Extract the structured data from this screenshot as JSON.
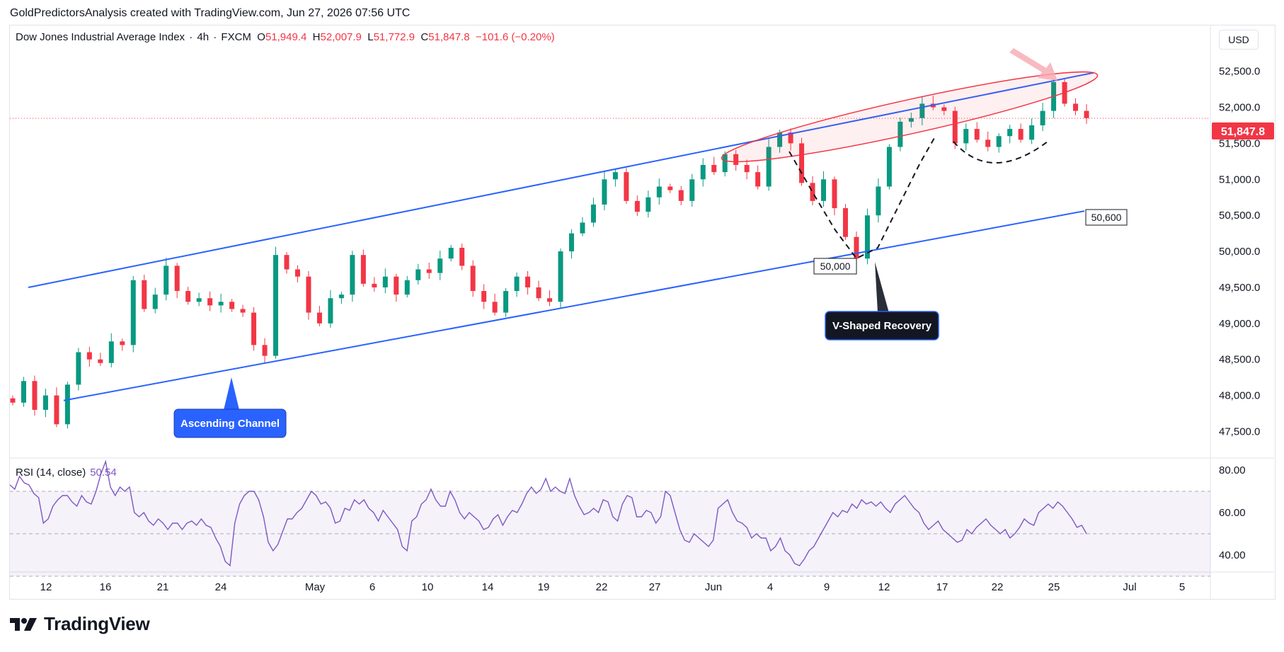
{
  "credit": "GoldPredictorsAnalysis created with TradingView.com, Jun 27, 2026 07:56 UTC",
  "legend": {
    "symbol": "Dow Jones Industrial Average Index",
    "interval": "4h",
    "source": "FXCM",
    "o_label": "O",
    "o": "51,949.4",
    "h_label": "H",
    "h": "52,007.9",
    "l_label": "L",
    "l": "51,772.9",
    "c_label": "C",
    "c": "51,847.8",
    "change": "−101.6 (−0.20%)"
  },
  "currency": "USD",
  "last_price": "51,847.8",
  "rsi": {
    "label": "RSI (14, close)",
    "value": "50.54"
  },
  "annotations": {
    "ascending_channel": "Ascending Channel",
    "v_shaped": "V-Shaped Recovery",
    "level_low": "50,000",
    "level_channel": "50,600"
  },
  "brand": "TradingView",
  "colors": {
    "up": "#089981",
    "down": "#f23645",
    "channel": "#2962ff",
    "rsi": "#7e57c2",
    "ellipse": "#f23645"
  },
  "chart_data": [
    {
      "type": "candlestick",
      "ylim": [
        47200,
        52900
      ],
      "yticks": [
        47500,
        48000,
        48500,
        49000,
        49500,
        50000,
        50500,
        51000,
        51500,
        52000,
        52500
      ],
      "ytick_labels": [
        "47,500.0",
        "48,000.0",
        "48,500.0",
        "49,000.0",
        "49,500.0",
        "50,000.0",
        "50,500.0",
        "51,000.0",
        "51,500.0",
        "52,000.0",
        "52,500.0"
      ],
      "xtick_labels": [
        "12",
        "16",
        "21",
        "24",
        "May",
        "6",
        "10",
        "14",
        "19",
        "22",
        "27",
        "Jun",
        "4",
        "9",
        "12",
        "17",
        "22",
        "25",
        "Jul",
        "5"
      ],
      "series_close": [
        47900,
        48200,
        47800,
        48000,
        47600,
        48150,
        48600,
        48500,
        48450,
        48750,
        48700,
        49600,
        49200,
        49400,
        49800,
        49450,
        49300,
        49350,
        49250,
        49300,
        49200,
        49150,
        48700,
        48550,
        49950,
        49750,
        49650,
        49150,
        49000,
        49350,
        49400,
        49950,
        49550,
        49500,
        49650,
        49400,
        49600,
        49750,
        49700,
        49900,
        50050,
        49800,
        49450,
        49300,
        49150,
        49450,
        49650,
        49500,
        49350,
        49300,
        50000,
        50250,
        50400,
        50650,
        51000,
        51100,
        50700,
        50550,
        50750,
        50900,
        50850,
        50700,
        51000,
        51200,
        51100,
        51350,
        51200,
        51100,
        50900,
        51450,
        51650,
        51500,
        50950,
        50700,
        51000,
        50600,
        50200,
        49900,
        50500,
        50900,
        51450,
        51800,
        51850,
        52050,
        52000,
        51950,
        51500,
        51700,
        51550,
        51450,
        51600,
        51700,
        51550,
        51750,
        51950,
        52350,
        52050,
        51950,
        51850
      ],
      "channel_upper": {
        "start": [
          "Apr 10",
          49500
        ],
        "end": [
          "Jun 25",
          52500
        ]
      },
      "channel_lower": {
        "start": [
          "Apr 12",
          47900
        ],
        "end": [
          "Jun 25",
          50600
        ]
      }
    },
    {
      "type": "line",
      "name": "RSI (14, close)",
      "ylim": [
        33,
        83
      ],
      "yticks": [
        40,
        60,
        80
      ],
      "ytick_labels": [
        "40.00",
        "60.00",
        "80.00"
      ],
      "bands": [
        30,
        50,
        70
      ],
      "values": [
        73,
        71,
        77,
        74,
        73,
        69,
        67,
        55,
        57,
        63,
        66,
        68,
        68,
        65,
        63,
        68,
        65,
        64,
        70,
        78,
        84,
        72,
        68,
        72,
        70,
        72,
        60,
        58,
        60,
        56,
        54,
        57,
        55,
        52,
        55,
        55,
        52,
        55,
        56,
        54,
        57,
        54,
        53,
        48,
        44,
        37,
        35,
        55,
        64,
        68,
        70,
        70,
        66,
        58,
        46,
        42,
        45,
        51,
        57,
        57,
        60,
        62,
        66,
        70,
        68,
        64,
        65,
        62,
        55,
        56,
        62,
        61,
        66,
        64,
        66,
        62,
        60,
        56,
        61,
        58,
        55,
        52,
        44,
        42,
        56,
        58,
        64,
        66,
        71,
        66,
        63,
        63,
        70,
        66,
        60,
        57,
        60,
        58,
        56,
        52,
        53,
        57,
        59,
        54,
        58,
        61,
        60,
        64,
        69,
        72,
        69,
        71,
        76,
        70,
        72,
        70,
        69,
        76,
        68,
        63,
        59,
        60,
        62,
        60,
        66,
        65,
        58,
        56,
        64,
        68,
        67,
        58,
        58,
        61,
        60,
        55,
        58,
        70,
        68,
        60,
        52,
        47,
        46,
        50,
        48,
        46,
        44,
        47,
        62,
        64,
        66,
        60,
        56,
        55,
        53,
        48,
        50,
        48,
        48,
        42,
        44,
        48,
        42,
        40,
        36,
        35,
        38,
        42,
        44,
        48,
        52,
        56,
        60,
        58,
        61,
        60,
        64,
        62,
        66,
        64,
        65,
        63,
        65,
        62,
        60,
        64,
        66,
        68,
        65,
        62,
        60,
        55,
        52,
        54,
        56,
        52,
        50,
        48,
        46,
        47,
        52,
        50,
        53,
        55,
        57,
        54,
        52,
        50,
        52,
        48,
        50,
        53,
        57,
        55,
        54,
        60,
        62,
        64,
        62,
        65,
        63,
        60,
        57,
        53,
        54,
        50
      ]
    }
  ]
}
